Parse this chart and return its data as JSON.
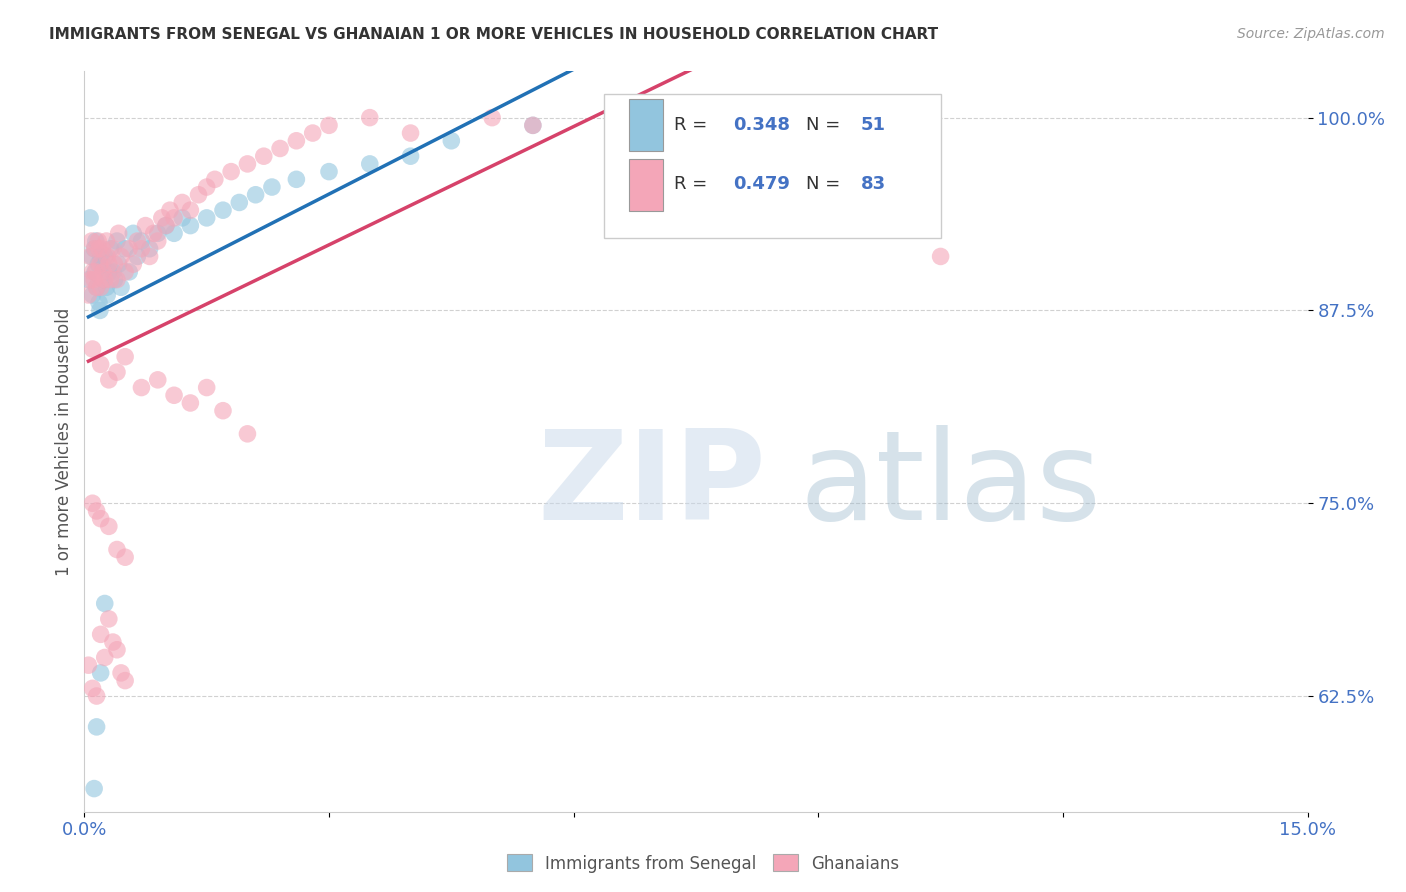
{
  "title": "IMMIGRANTS FROM SENEGAL VS GHANAIAN 1 OR MORE VEHICLES IN HOUSEHOLD CORRELATION CHART",
  "source": "Source: ZipAtlas.com",
  "ylabel": "1 or more Vehicles in Household",
  "xlim": [
    0.0,
    15.0
  ],
  "ylim": [
    55.0,
    103.0
  ],
  "ytick_vals": [
    62.5,
    75.0,
    87.5,
    100.0
  ],
  "ytick_labels": [
    "62.5%",
    "75.0%",
    "87.5%",
    "100.0%"
  ],
  "xtick_vals": [
    0.0,
    3.0,
    6.0,
    9.0,
    12.0,
    15.0
  ],
  "xtick_labels": [
    "0.0%",
    "",
    "",
    "",
    "",
    "15.0%"
  ],
  "blue_R": 0.348,
  "blue_N": 51,
  "pink_R": 0.479,
  "pink_N": 83,
  "blue_scatter_color": "#92c5de",
  "pink_scatter_color": "#f4a6b8",
  "blue_line_color": "#2171b5",
  "pink_line_color": "#d6426a",
  "tick_color": "#4472c4",
  "title_color": "#333333",
  "ylabel_color": "#555555",
  "grid_color": "#cccccc",
  "bg_color": "#ffffff",
  "legend_label_blue": "Immigrants from Senegal",
  "legend_label_pink": "Ghanaians",
  "watermark_zip_color": "#c8d8ea",
  "watermark_atlas_color": "#9ab8cc",
  "blue_x": [
    0.05,
    0.07,
    0.09,
    0.1,
    0.12,
    0.13,
    0.14,
    0.15,
    0.17,
    0.18,
    0.19,
    0.2,
    0.22,
    0.23,
    0.25,
    0.27,
    0.28,
    0.3,
    0.32,
    0.35,
    0.37,
    0.4,
    0.42,
    0.45,
    0.5,
    0.55,
    0.6,
    0.65,
    0.7,
    0.8,
    0.9,
    1.0,
    1.1,
    1.2,
    1.3,
    1.5,
    1.7,
    1.9,
    2.1,
    2.3,
    2.6,
    3.0,
    3.5,
    4.0,
    4.5,
    5.5,
    7.0,
    0.12,
    0.15,
    0.2,
    0.25
  ],
  "blue_y": [
    89.5,
    93.5,
    91.0,
    88.5,
    91.5,
    90.0,
    92.0,
    89.0,
    90.5,
    88.0,
    87.5,
    91.0,
    90.5,
    89.5,
    91.0,
    89.0,
    88.5,
    90.0,
    91.5,
    90.0,
    89.5,
    92.0,
    90.5,
    89.0,
    91.5,
    90.0,
    92.5,
    91.0,
    92.0,
    91.5,
    92.5,
    93.0,
    92.5,
    93.5,
    93.0,
    93.5,
    94.0,
    94.5,
    95.0,
    95.5,
    96.0,
    96.5,
    97.0,
    97.5,
    98.5,
    99.5,
    100.0,
    56.5,
    60.5,
    64.0,
    68.5
  ],
  "pink_x": [
    0.05,
    0.07,
    0.08,
    0.09,
    0.1,
    0.12,
    0.13,
    0.14,
    0.15,
    0.17,
    0.18,
    0.19,
    0.2,
    0.22,
    0.23,
    0.25,
    0.27,
    0.28,
    0.3,
    0.32,
    0.35,
    0.37,
    0.4,
    0.42,
    0.45,
    0.5,
    0.55,
    0.6,
    0.65,
    0.7,
    0.75,
    0.8,
    0.85,
    0.9,
    0.95,
    1.0,
    1.05,
    1.1,
    1.2,
    1.3,
    1.4,
    1.5,
    1.6,
    1.8,
    2.0,
    2.2,
    2.4,
    2.6,
    2.8,
    3.0,
    3.5,
    4.0,
    5.0,
    5.5,
    0.1,
    0.2,
    0.3,
    0.4,
    0.5,
    0.7,
    0.9,
    1.1,
    1.3,
    1.5,
    1.7,
    2.0,
    0.1,
    0.15,
    0.2,
    0.3,
    0.4,
    0.5,
    10.5,
    0.05,
    0.1,
    0.15,
    0.2,
    0.25,
    0.3,
    0.35,
    0.4,
    0.45,
    0.5
  ],
  "pink_y": [
    88.5,
    91.0,
    89.5,
    92.0,
    90.0,
    89.5,
    91.5,
    90.0,
    89.0,
    92.0,
    91.5,
    90.5,
    89.0,
    91.5,
    90.0,
    89.5,
    92.0,
    91.0,
    90.5,
    89.5,
    91.5,
    90.5,
    89.5,
    92.5,
    91.0,
    90.0,
    91.5,
    90.5,
    92.0,
    91.5,
    93.0,
    91.0,
    92.5,
    92.0,
    93.5,
    93.0,
    94.0,
    93.5,
    94.5,
    94.0,
    95.0,
    95.5,
    96.0,
    96.5,
    97.0,
    97.5,
    98.0,
    98.5,
    99.0,
    99.5,
    100.0,
    99.0,
    100.0,
    99.5,
    85.0,
    84.0,
    83.0,
    83.5,
    84.5,
    82.5,
    83.0,
    82.0,
    81.5,
    82.5,
    81.0,
    79.5,
    75.0,
    74.5,
    74.0,
    73.5,
    72.0,
    71.5,
    91.0,
    64.5,
    63.0,
    62.5,
    66.5,
    65.0,
    67.5,
    66.0,
    65.5,
    64.0,
    63.5
  ]
}
